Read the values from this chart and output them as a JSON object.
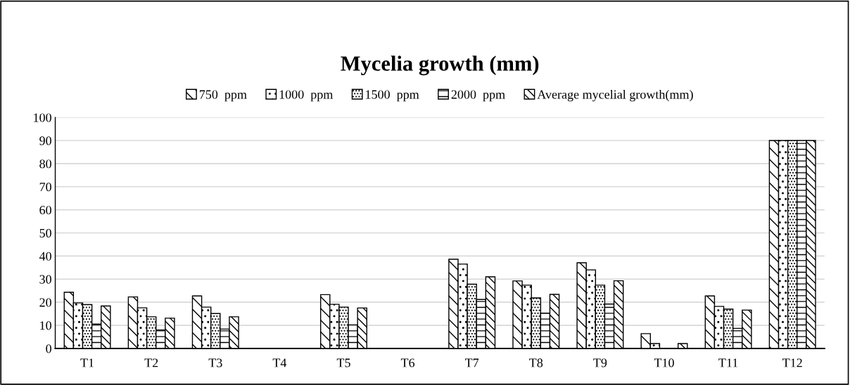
{
  "chart_data": {
    "type": "bar",
    "title": "Mycelia growth (mm)",
    "categories": [
      "T1",
      "T2",
      "T3",
      "T4",
      "T5",
      "T6",
      "T7",
      "T8",
      "T9",
      "T10",
      "T11",
      "T12"
    ],
    "series": [
      {
        "name": "750  ppm",
        "color": "#000000",
        "values": [
          24.3,
          22.3,
          22.7,
          0,
          23.3,
          0,
          38.6,
          29.2,
          37.1,
          6.4,
          22.7,
          90
        ]
      },
      {
        "name": "1000  ppm",
        "color": "#000000",
        "values": [
          19.7,
          17.6,
          17.9,
          0,
          19.1,
          0,
          36.5,
          27.4,
          34.0,
          2.1,
          18.2,
          90
        ]
      },
      {
        "name": "1500  ppm",
        "color": "#000000",
        "values": [
          19.0,
          13.7,
          15.1,
          0,
          17.9,
          0,
          27.8,
          21.9,
          27.4,
          0,
          17.0,
          90
        ]
      },
      {
        "name": "2000  ppm",
        "color": "#000000",
        "values": [
          10.6,
          8.0,
          8.4,
          0,
          10.2,
          0,
          21.2,
          15.3,
          19.2,
          0,
          8.7,
          90
        ]
      },
      {
        "name": "Average mycelial growth(mm)",
        "color": "#000000",
        "values": [
          18.4,
          13.1,
          13.7,
          0,
          17.5,
          0,
          31.0,
          23.4,
          29.3,
          2.1,
          16.6,
          90
        ]
      }
    ],
    "ylim": [
      0,
      100
    ],
    "yticks": [
      0,
      10,
      20,
      30,
      40,
      50,
      60,
      70,
      80,
      90,
      100
    ],
    "grid": "y",
    "legend": "top"
  }
}
